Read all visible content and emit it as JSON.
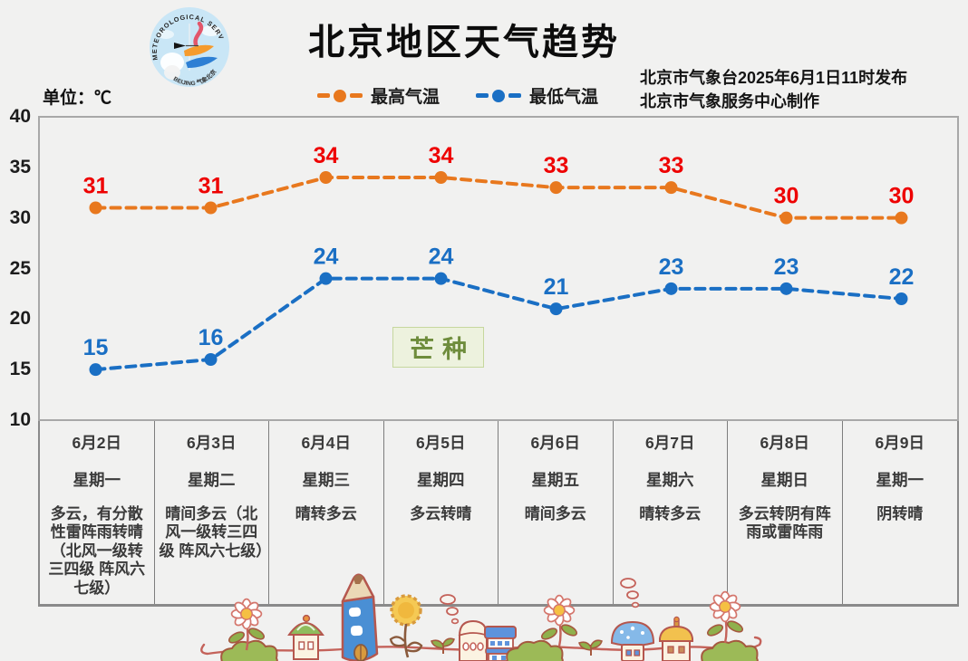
{
  "page": {
    "title": "北京地区天气趋势",
    "unit_label": "单位：℃",
    "issued_line": "北京市气象台2025年6月1日11时发布",
    "produced_line": "北京市气象服务中心制作",
    "solar_term": "芒种"
  },
  "logo": {
    "arc_text": "METEOROLOGICAL SERVICE",
    "bottom_text": "BEIJING 气象北京"
  },
  "colors": {
    "max_line": "#E8781E",
    "max_label": "#EE0000",
    "min_line": "#1A6FC4",
    "min_label": "#1A6FC4",
    "background": "#F1F1F0",
    "plot_border": "#A8A8A8",
    "table_line": "#7D7D7D",
    "solar_term_bg": "#EDF2DE",
    "solar_term_border": "#C6D79E",
    "solar_term_text": "#6E8C3C"
  },
  "chart_data": {
    "type": "line",
    "title": "北京地区天气趋势",
    "categories": [
      "6月2日",
      "6月3日",
      "6月4日",
      "6月5日",
      "6月6日",
      "6月7日",
      "6月8日",
      "6月9日"
    ],
    "weekdays": [
      "星期一",
      "星期二",
      "星期三",
      "星期四",
      "星期五",
      "星期六",
      "星期日",
      "星期一"
    ],
    "weather": [
      "多云，有分散性雷阵雨转晴（北风一级转三四级 阵风六七级）",
      "晴间多云（北风一级转三四级 阵风六七级）",
      "晴转多云",
      "多云转晴",
      "晴间多云",
      "晴转多云",
      "多云转阴有阵雨或雷阵雨",
      "阴转晴"
    ],
    "series": [
      {
        "name": "最高气温",
        "values": [
          31,
          31,
          34,
          34,
          33,
          33,
          30,
          30
        ]
      },
      {
        "name": "最低气温",
        "values": [
          15,
          16,
          24,
          24,
          21,
          23,
          23,
          22
        ]
      }
    ],
    "ylabel": "单位：℃",
    "ylim": [
      10,
      40
    ],
    "yticks": [
      40,
      35,
      30,
      25,
      20,
      15,
      10
    ],
    "grid": false,
    "legend_position": "top",
    "annotation": "芒种"
  }
}
